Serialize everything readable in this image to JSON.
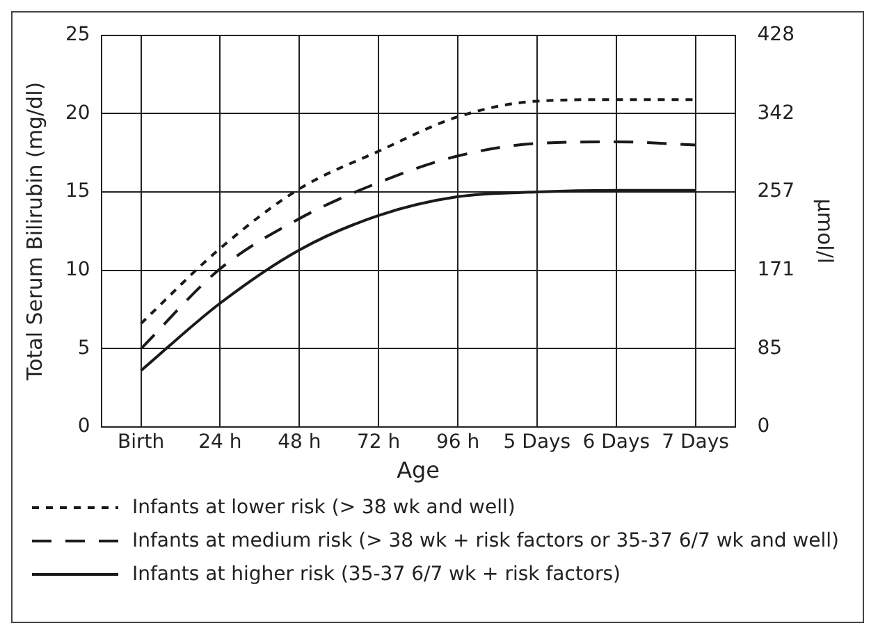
{
  "chart_data": {
    "type": "line",
    "xlabel": "Age",
    "ylabel": "Total Serum Bilirubin (mg/dl)",
    "y2label": "µmol/l",
    "categories": [
      "Birth",
      "24 h",
      "48 h",
      "72 h",
      "96 h",
      "5 Days",
      "6 Days",
      "7 Days"
    ],
    "series": [
      {
        "name": "Infants at lower risk (> 38 wk and well)",
        "color": "#1a1a1a",
        "line_style": "dotted",
        "values": [
          6.6,
          11.4,
          15.2,
          17.6,
          19.8,
          20.8,
          20.9,
          20.9
        ]
      },
      {
        "name": "Infants at medium risk (> 38 wk + risk factors or 35-37 6/7 wk and well)",
        "color": "#1a1a1a",
        "line_style": "dashed",
        "values": [
          5,
          10.1,
          13.3,
          15.6,
          17.3,
          18.1,
          18.2,
          18.0
        ]
      },
      {
        "name": "Infants at higher risk (35-37 6/7 wk + risk factors)",
        "color": "#1a1a1a",
        "line_style": "solid",
        "values": [
          3.6,
          7.9,
          11.3,
          13.5,
          14.7,
          15.0,
          15.1,
          15.1
        ]
      }
    ],
    "ylim": [
      0,
      25
    ],
    "yticks": [
      0,
      5,
      10,
      15,
      20,
      25
    ],
    "y2lim": [
      0,
      428
    ],
    "y2ticks": [
      0,
      85,
      171,
      257,
      342,
      428
    ],
    "grid": true,
    "legend": "bottom",
    "marker": "none"
  }
}
